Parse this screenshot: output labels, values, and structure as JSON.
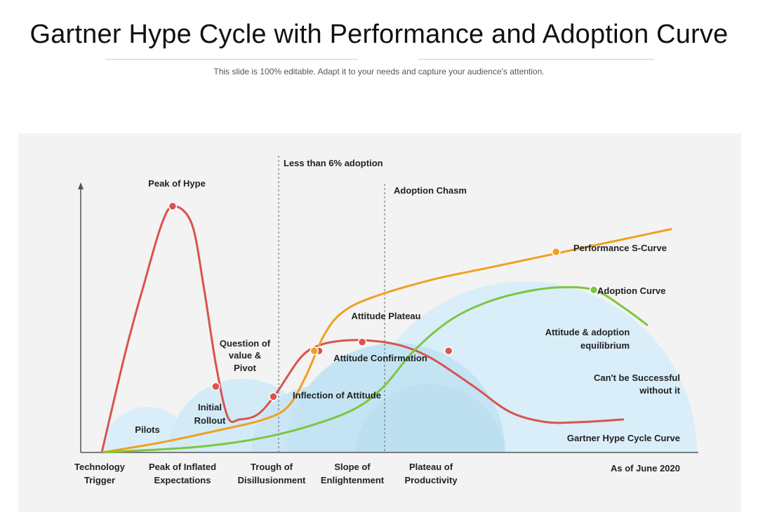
{
  "header": {
    "title": "Gartner Hype Cycle with Performance and Adoption Curve",
    "subtitle": "This slide is 100% editable. Adapt it to your needs and capture your audience's attention."
  },
  "colors": {
    "hype": "#d9534f",
    "performance": "#f0a020",
    "adoption": "#7cc63f",
    "bubble_dark": "#bfe3f3",
    "bubble_light": "#d9eef8",
    "panel": "#f3f3f3"
  },
  "chart_data": {
    "type": "line",
    "title": "Gartner Hype Cycle with Performance and Adoption Curve",
    "x_axis_phases": [
      "Technology Trigger",
      "Peak of Inflated Expectations",
      "Trough of Disillusionment",
      "Slope of Enlightenment",
      "Plateau of Productivity"
    ],
    "as_of": "As of June 2020",
    "x_range": [
      0,
      100
    ],
    "y_range": [
      0,
      100
    ],
    "series": [
      {
        "name": "Gartner Hype Cycle Curve",
        "color": "#d9534f",
        "points": [
          [
            0,
            0
          ],
          [
            4,
            40
          ],
          [
            7,
            66
          ],
          [
            10,
            90
          ],
          [
            12,
            97
          ],
          [
            15,
            90
          ],
          [
            17,
            65
          ],
          [
            19,
            35
          ],
          [
            21,
            14
          ],
          [
            23,
            13
          ],
          [
            26,
            15
          ],
          [
            29,
            23
          ],
          [
            33,
            37
          ],
          [
            36,
            42
          ],
          [
            40,
            44
          ],
          [
            45,
            44
          ],
          [
            50,
            42
          ],
          [
            55,
            37
          ],
          [
            62,
            26
          ],
          [
            68,
            16
          ],
          [
            74,
            12
          ],
          [
            80,
            12
          ],
          [
            87,
            13
          ]
        ],
        "markers": [
          [
            11.8,
            97
          ],
          [
            19,
            26
          ],
          [
            28.6,
            22
          ],
          [
            36.2,
            40
          ],
          [
            43.4,
            43.5
          ],
          [
            57.8,
            40
          ]
        ]
      },
      {
        "name": "Performance S-Curve",
        "color": "#f0a020",
        "points": [
          [
            0,
            0
          ],
          [
            10,
            4
          ],
          [
            20,
            9
          ],
          [
            27,
            13
          ],
          [
            31,
            18
          ],
          [
            34,
            30
          ],
          [
            37,
            46
          ],
          [
            40,
            55
          ],
          [
            45,
            61
          ],
          [
            55,
            68
          ],
          [
            65,
            73
          ],
          [
            75,
            78
          ],
          [
            85,
            83
          ],
          [
            95,
            88
          ]
        ],
        "markers": [
          [
            35.4,
            40
          ],
          [
            75.7,
            79
          ]
        ]
      },
      {
        "name": "Adoption Curve",
        "color": "#7cc63f",
        "points": [
          [
            0,
            0
          ],
          [
            15,
            2
          ],
          [
            25,
            5
          ],
          [
            34,
            10
          ],
          [
            42,
            17
          ],
          [
            47,
            26
          ],
          [
            52,
            40
          ],
          [
            58,
            52
          ],
          [
            64,
            59
          ],
          [
            70,
            63
          ],
          [
            76,
            65
          ],
          [
            82,
            64
          ],
          [
            87,
            57
          ],
          [
            91,
            50
          ]
        ],
        "markers": [
          [
            82,
            64
          ]
        ]
      }
    ],
    "annotations": [
      {
        "text": "Peak of Hype",
        "kind": "hype"
      },
      {
        "text": "Question of value & Pivot",
        "kind": "hype"
      },
      {
        "text": "Initial Rollout",
        "kind": "hype"
      },
      {
        "text": "Pilots",
        "kind": "phase"
      },
      {
        "text": "Inflection of Attitude",
        "kind": "hype"
      },
      {
        "text": "Attitude Plateau",
        "kind": "hype"
      },
      {
        "text": "Attitude Confirmation",
        "kind": "hype"
      },
      {
        "text": "Attitude & adoption equilibrium",
        "kind": "adoption"
      },
      {
        "text": "Can't be Successful without it",
        "kind": "hype"
      },
      {
        "text": "Less than 6% adoption",
        "kind": "threshold"
      },
      {
        "text": "Adoption Chasm",
        "kind": "threshold"
      }
    ],
    "legend": [
      "Performance S-Curve",
      "Adoption Curve",
      "Gartner Hype Cycle Curve"
    ]
  },
  "labels": {
    "peak_of_hype": "Peak of Hype",
    "question_1": "Question of",
    "question_2": "value &",
    "question_3": "Pivot",
    "initial_1": "Initial",
    "initial_2": "Rollout",
    "pilots": "Pilots",
    "inflection": "Inflection of Attitude",
    "plateau": "Attitude Plateau",
    "confirmation": "Attitude Confirmation",
    "equilibrium_1": "Attitude & adoption",
    "equilibrium_2": "equilibrium",
    "cant_1": "Can't be Successful",
    "cant_2": "without it",
    "less_than": "Less than 6% adoption",
    "chasm": "Adoption Chasm",
    "perf": "Performance S-Curve",
    "adopt": "Adoption Curve",
    "hype": "Gartner Hype Cycle Curve",
    "as_of": "As of June 2020",
    "tech_1": "Technology",
    "tech_2": "Trigger",
    "peak_1": "Peak of Inflated",
    "peak_2": "Expectations",
    "trough_1": "Trough of",
    "trough_2": "Disillusionment",
    "slope_1": "Slope of",
    "slope_2": "Enlightenment",
    "plat_1": "Plateau of",
    "plat_2": "Productivity"
  }
}
